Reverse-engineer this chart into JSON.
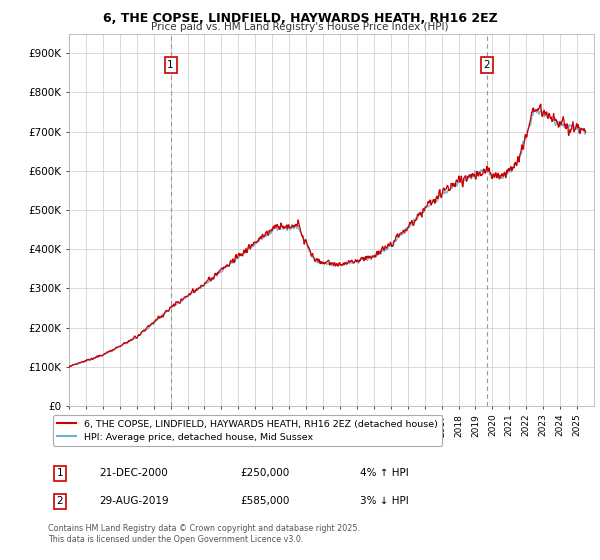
{
  "title_line1": "6, THE COPSE, LINDFIELD, HAYWARDS HEATH, RH16 2EZ",
  "title_line2": "Price paid vs. HM Land Registry's House Price Index (HPI)",
  "ylim": [
    0,
    950000
  ],
  "yticks": [
    0,
    100000,
    200000,
    300000,
    400000,
    500000,
    600000,
    700000,
    800000,
    900000
  ],
  "ytick_labels": [
    "£0",
    "£100K",
    "£200K",
    "£300K",
    "£400K",
    "£500K",
    "£600K",
    "£700K",
    "£800K",
    "£900K"
  ],
  "hpi_color": "#6baed6",
  "price_color": "#cc0000",
  "marker1_x": 2001.0,
  "marker2_x": 2019.67,
  "legend_label_price": "6, THE COPSE, LINDFIELD, HAYWARDS HEATH, RH16 2EZ (detached house)",
  "legend_label_hpi": "HPI: Average price, detached house, Mid Sussex",
  "note1_num": "1",
  "note1_date": "21-DEC-2000",
  "note1_price": "£250,000",
  "note1_hpi": "4% ↑ HPI",
  "note2_num": "2",
  "note2_date": "29-AUG-2019",
  "note2_price": "£585,000",
  "note2_hpi": "3% ↓ HPI",
  "footer": "Contains HM Land Registry data © Crown copyright and database right 2025.\nThis data is licensed under the Open Government Licence v3.0.",
  "background_color": "#ffffff",
  "grid_color": "#cccccc",
  "hpi_seed": 0,
  "xlim_left": 1995,
  "xlim_right": 2026
}
